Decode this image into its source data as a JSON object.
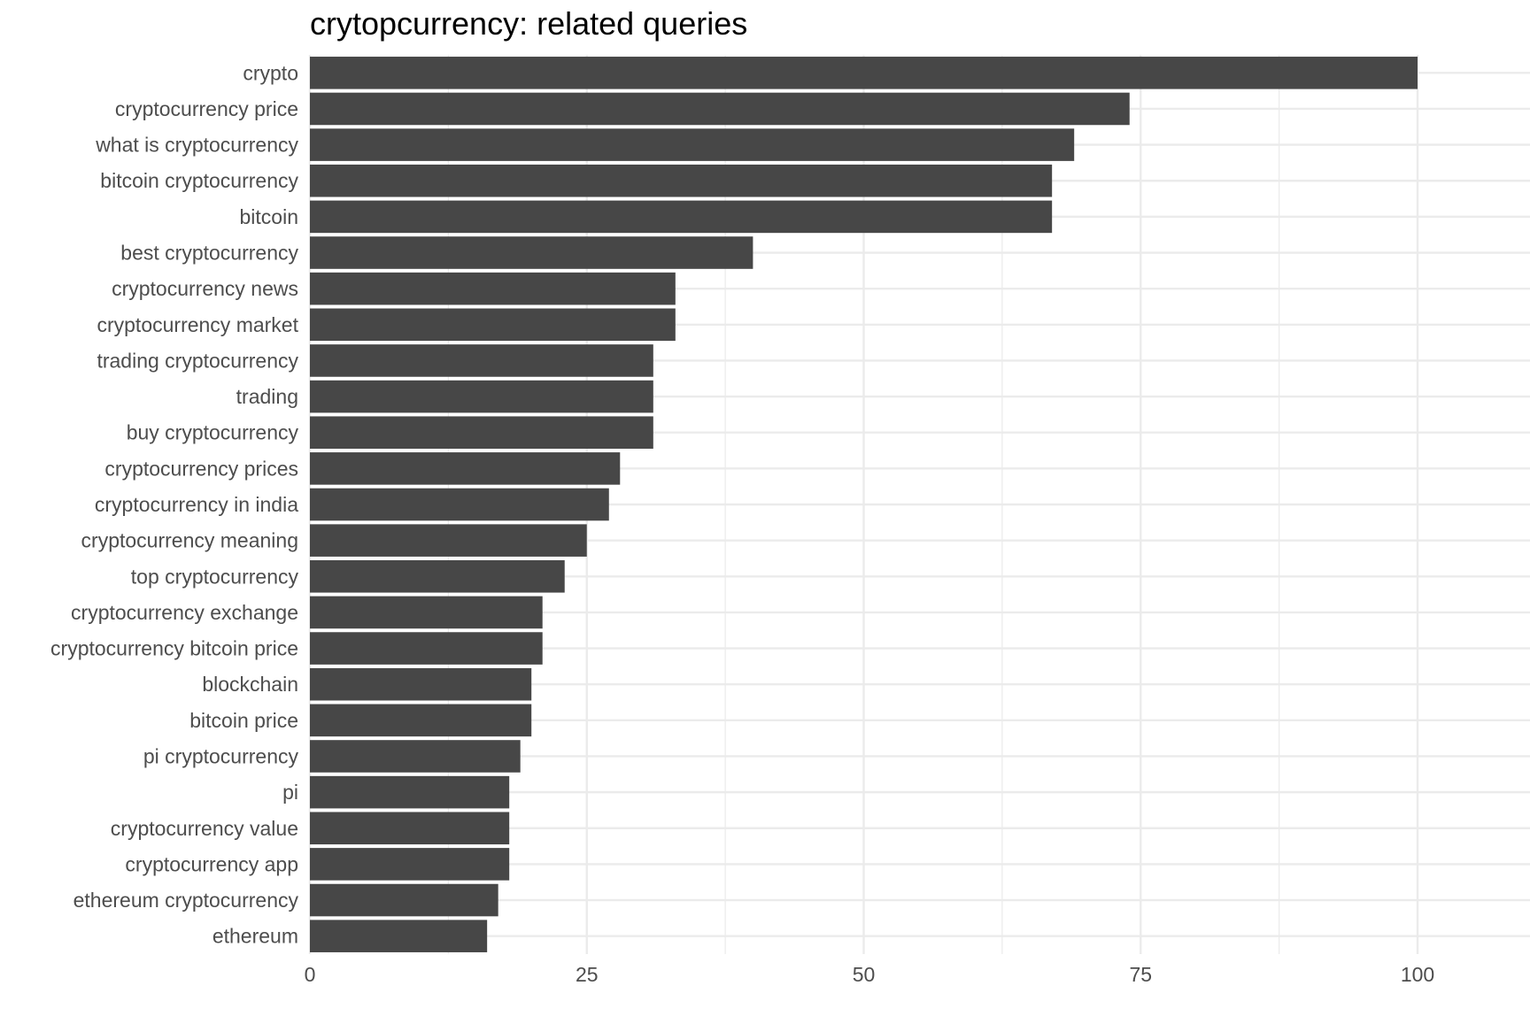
{
  "chart_data": {
    "type": "bar",
    "orientation": "horizontal",
    "title": "crytopcurrency: related queries",
    "xlabel": "",
    "ylabel": "",
    "xlim": [
      0,
      110
    ],
    "x_ticks": [
      0,
      25,
      50,
      75,
      100
    ],
    "x_tick_labels": [
      "0",
      "25",
      "50",
      "75",
      "100"
    ],
    "grid": true,
    "legend": "none",
    "bar_color": "#474747",
    "categories": [
      "crypto",
      "cryptocurrency price",
      "what is cryptocurrency",
      "bitcoin cryptocurrency",
      "bitcoin",
      "best cryptocurrency",
      "cryptocurrency news",
      "cryptocurrency market",
      "trading cryptocurrency",
      "trading",
      "buy cryptocurrency",
      "cryptocurrency prices",
      "cryptocurrency in india",
      "cryptocurrency meaning",
      "top cryptocurrency",
      "cryptocurrency exchange",
      "cryptocurrency bitcoin price",
      "blockchain",
      "bitcoin price",
      "pi cryptocurrency",
      "pi",
      "cryptocurrency value",
      "cryptocurrency app",
      "ethereum cryptocurrency",
      "ethereum"
    ],
    "values": [
      100,
      74,
      69,
      67,
      67,
      40,
      33,
      33,
      31,
      31,
      31,
      28,
      27,
      25,
      23,
      21,
      21,
      20,
      20,
      19,
      18,
      18,
      18,
      17,
      16
    ]
  }
}
